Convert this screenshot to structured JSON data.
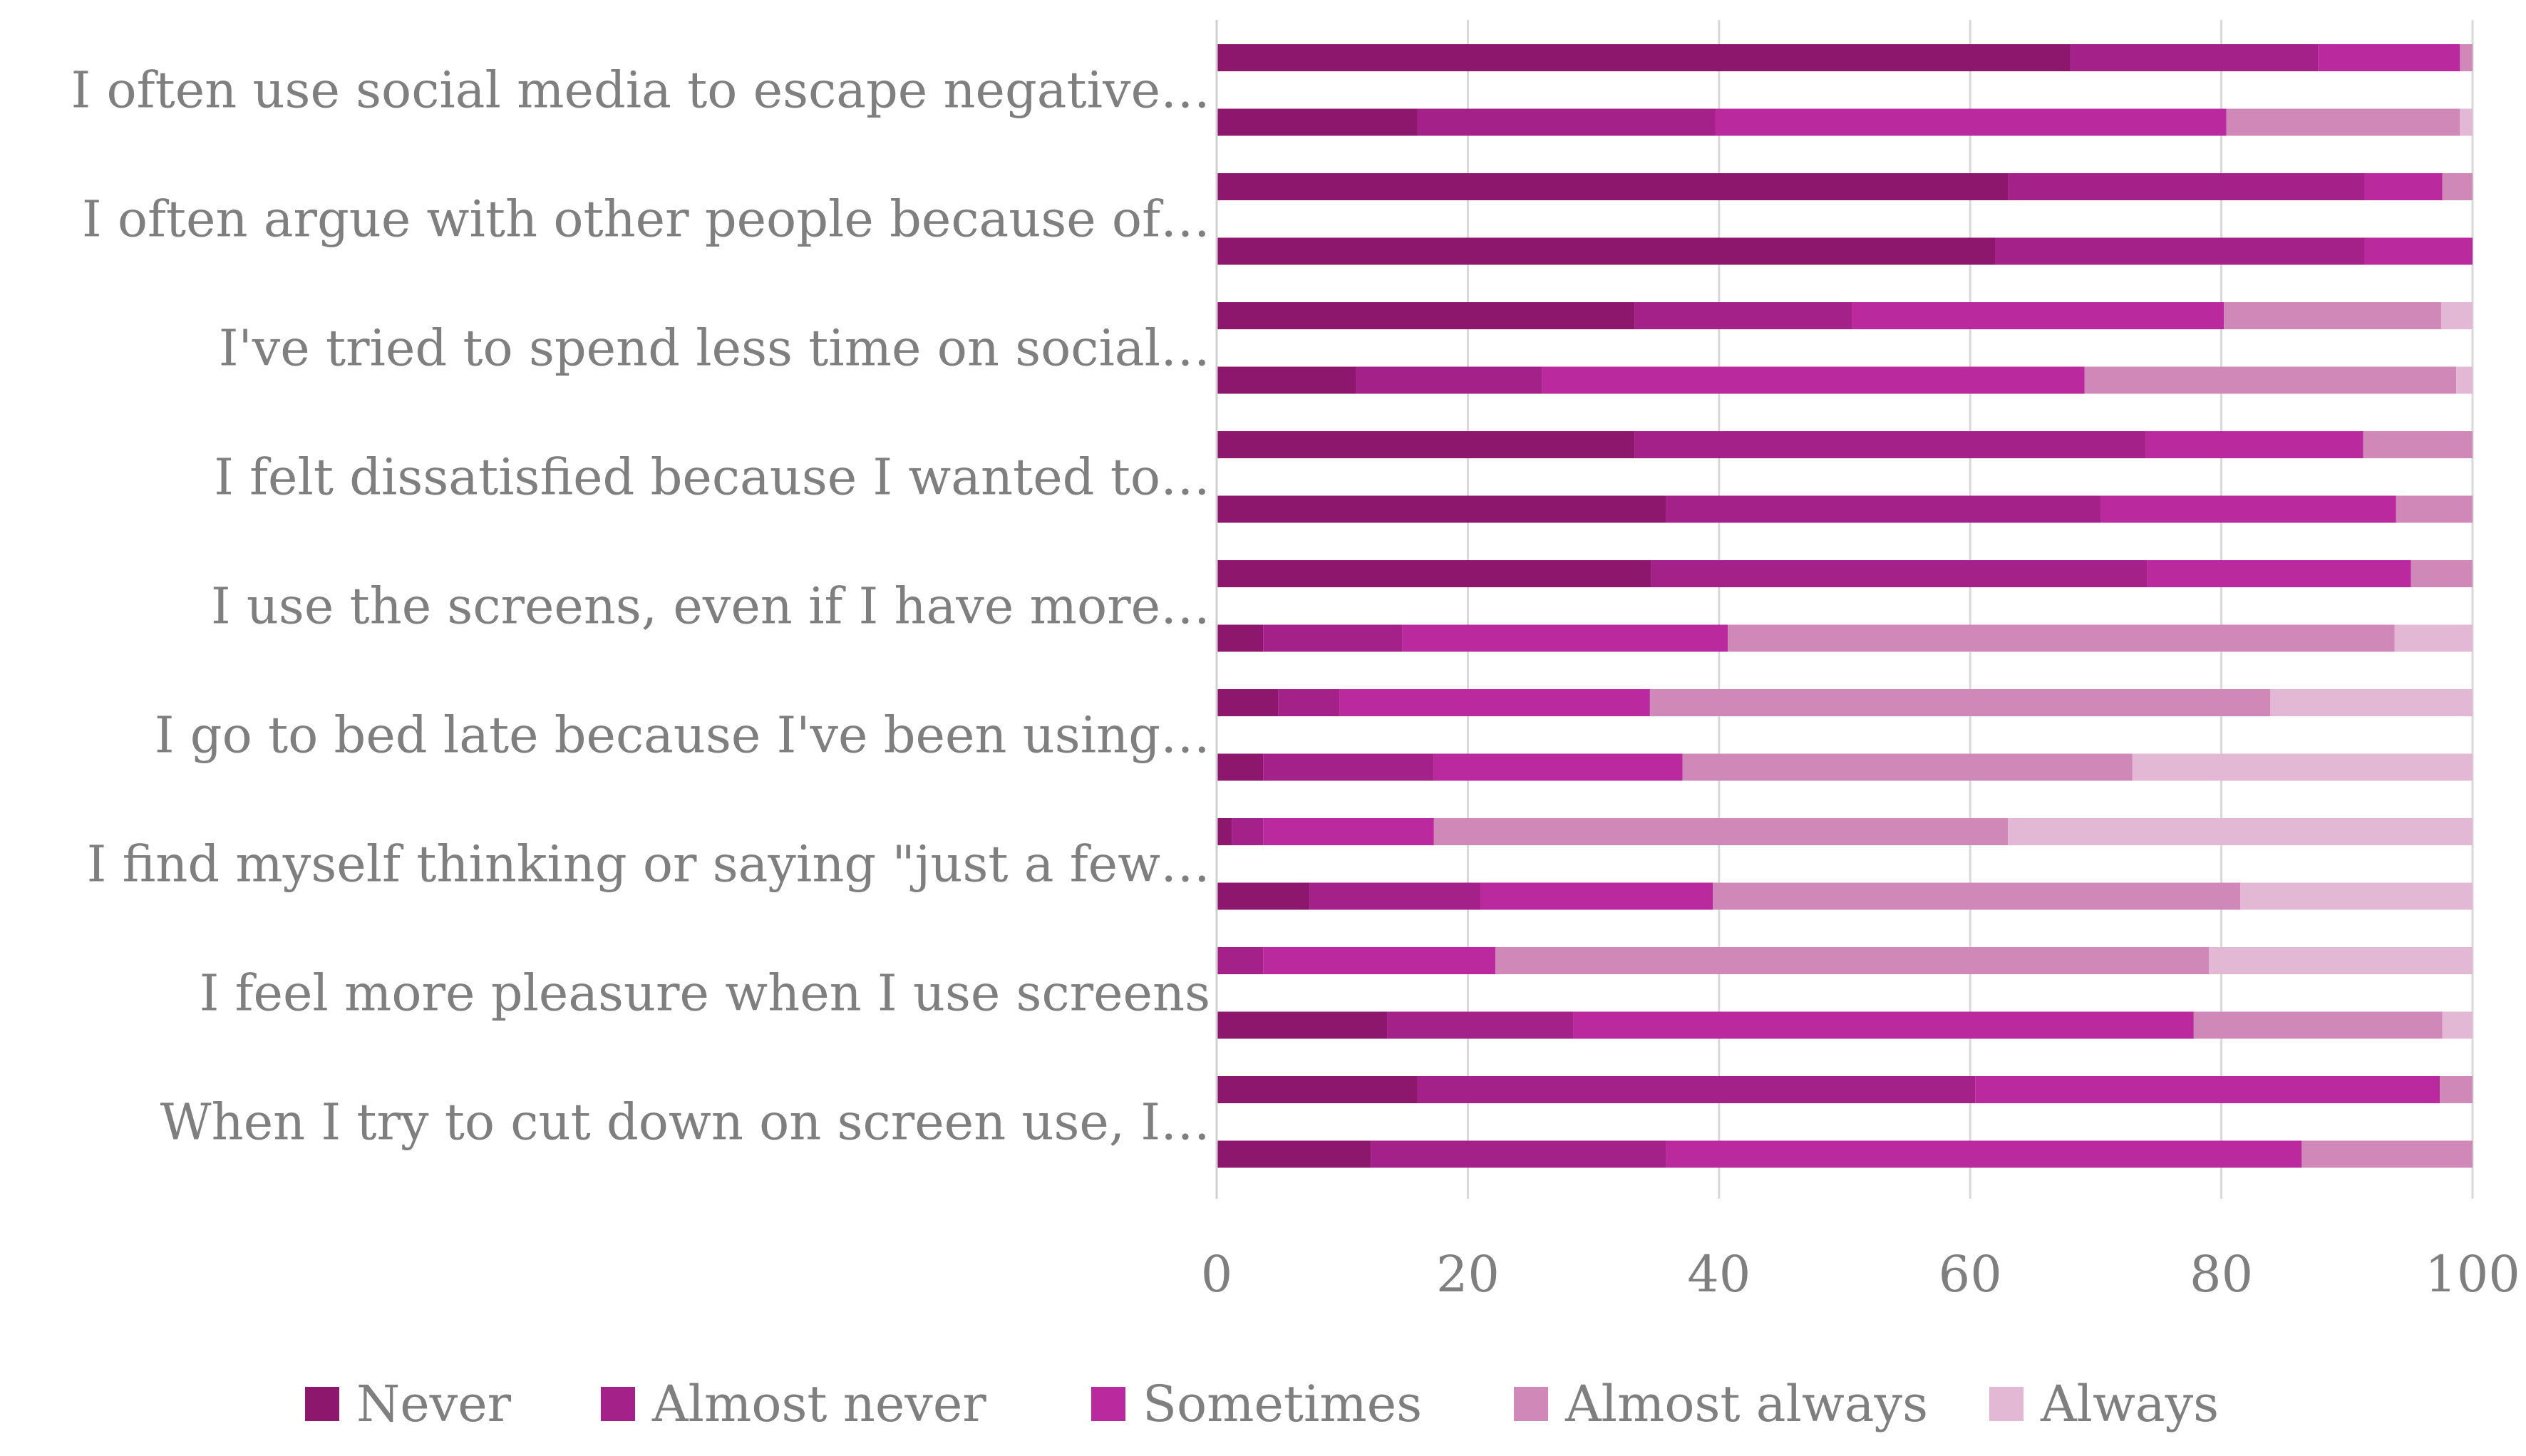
{
  "chart_data": {
    "type": "bar",
    "orientation": "horizontal",
    "stacked": true,
    "title": "",
    "xlabel": "",
    "ylabel": "",
    "xlim": [
      0,
      100
    ],
    "xticks": [
      0,
      20,
      40,
      60,
      80,
      100
    ],
    "grid": "vertical",
    "legend_position": "bottom",
    "colors": [
      "#8E176E",
      "#A5218A",
      "#BA2A9E",
      "#D088B9",
      "#E2B8D4"
    ],
    "series_names": [
      "Never",
      "Almost never",
      "Sometimes",
      "Almost always",
      "Always"
    ],
    "categories": [
      "I often use social media to escape negative…",
      "I often argue with other people because of…",
      "I've tried to spend less time on social…",
      "I felt dissatisfied because I wanted to…",
      "I use the screens, even if I have more…",
      "I go to bed late because I've been using…",
      "I find myself thinking or saying \"just a few…",
      "I feel more pleasure when I use screens",
      "When I try to cut down on screen use, I…"
    ],
    "bars": [
      {
        "category_index": 0,
        "values": [
          68,
          19.7,
          11.3,
          1.0,
          0.0
        ]
      },
      {
        "category_index": 0,
        "values": [
          16,
          23.7,
          40.7,
          18.6,
          1.0
        ]
      },
      {
        "category_index": 1,
        "values": [
          63,
          28.4,
          6.2,
          2.4,
          0.0
        ]
      },
      {
        "category_index": 1,
        "values": [
          62,
          29.4,
          8.6,
          0.0,
          0.0
        ]
      },
      {
        "category_index": 2,
        "values": [
          33.3,
          17.3,
          29.6,
          17.3,
          2.5
        ]
      },
      {
        "category_index": 2,
        "values": [
          11.1,
          14.8,
          43.2,
          29.6,
          1.3
        ]
      },
      {
        "category_index": 3,
        "values": [
          33.3,
          40.7,
          17.3,
          8.7,
          0.0
        ]
      },
      {
        "category_index": 3,
        "values": [
          35.8,
          34.6,
          23.5,
          6.1,
          0.0
        ]
      },
      {
        "category_index": 4,
        "values": [
          34.6,
          39.5,
          21.0,
          4.9,
          0.0
        ]
      },
      {
        "category_index": 4,
        "values": [
          3.7,
          11.1,
          25.9,
          53.1,
          6.2
        ]
      },
      {
        "category_index": 5,
        "values": [
          4.9,
          4.9,
          24.7,
          49.4,
          16.1
        ]
      },
      {
        "category_index": 5,
        "values": [
          3.7,
          13.6,
          19.8,
          35.8,
          27.1
        ]
      },
      {
        "category_index": 6,
        "values": [
          1.2,
          2.5,
          13.6,
          45.7,
          37.0
        ]
      },
      {
        "category_index": 6,
        "values": [
          7.4,
          13.6,
          18.5,
          42.0,
          18.5
        ]
      },
      {
        "category_index": 7,
        "values": [
          0.0,
          3.7,
          18.5,
          56.8,
          21.0
        ]
      },
      {
        "category_index": 7,
        "values": [
          13.6,
          14.8,
          49.4,
          19.8,
          2.4
        ]
      },
      {
        "category_index": 8,
        "values": [
          16.0,
          44.4,
          37.0,
          2.6,
          0.0
        ]
      },
      {
        "category_index": 8,
        "values": [
          12.3,
          23.5,
          50.6,
          13.6,
          0.0
        ]
      }
    ]
  }
}
